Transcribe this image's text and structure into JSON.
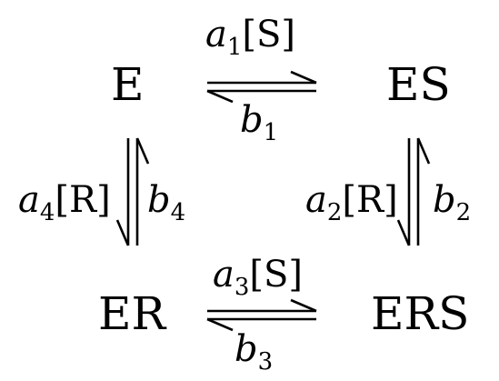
{
  "nodes": {
    "e": "E",
    "es": "ES",
    "er": "ER",
    "ers": "ERS"
  },
  "rates": {
    "a1": {
      "symbol": "a",
      "sub": "1",
      "conc": "[S]"
    },
    "b1": {
      "symbol": "b",
      "sub": "1"
    },
    "a2": {
      "symbol": "a",
      "sub": "2",
      "conc": "[R]"
    },
    "b2": {
      "symbol": "b",
      "sub": "2"
    },
    "a3": {
      "symbol": "a",
      "sub": "3",
      "conc": "[S]"
    },
    "b3": {
      "symbol": "b",
      "sub": "3"
    },
    "a4": {
      "symbol": "a",
      "sub": "4",
      "conc": "[R]"
    },
    "b4": {
      "symbol": "b",
      "sub": "4"
    }
  },
  "colors": {
    "ink": "#000000",
    "background": "#ffffff"
  }
}
